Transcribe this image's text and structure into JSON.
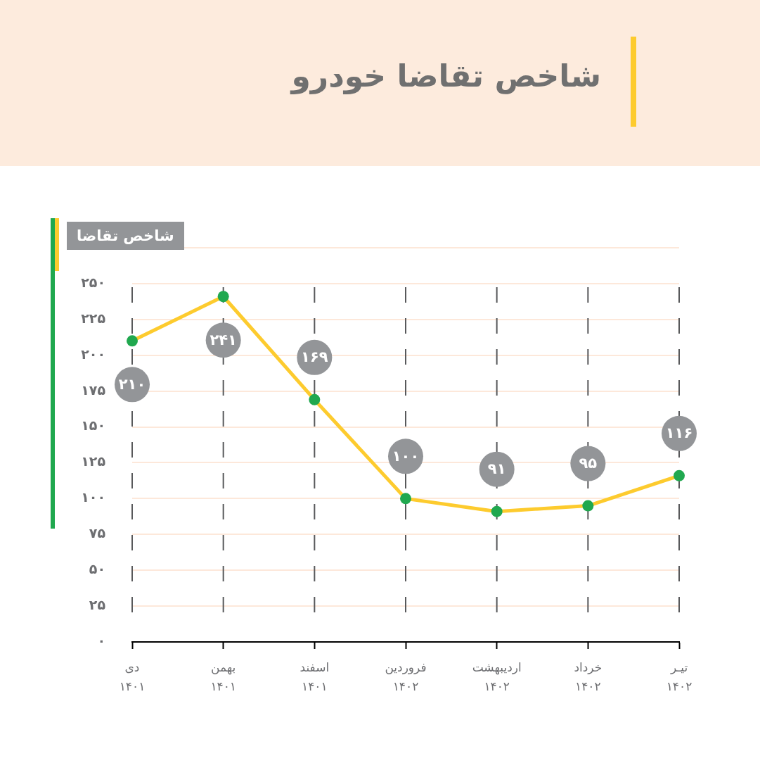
{
  "chart_data": {
    "type": "line",
    "title": "شاخص تقاضا خودرو",
    "ylabel": "شاخص تقاضا",
    "categories": [
      "دی ۱۴۰۱",
      "بهمن ۱۴۰۱",
      "اسفند ۱۴۰۱",
      "فروردین ۱۴۰۲",
      "اردیبهشت ۱۴۰۲",
      "خرداد ۱۴۰۲",
      "تیـر ۱۴۰۲"
    ],
    "series": [
      {
        "color": "#fdcb2e",
        "values": [
          210,
          241,
          169,
          100,
          91,
          95,
          116
        ],
        "value_labels": [
          "۲۱۰",
          "۲۴۱",
          "۱۶۹",
          "۱۰۰",
          "۹۱",
          "۹۵",
          "۱۱۶"
        ]
      }
    ],
    "ylim": [
      0,
      275
    ],
    "yticks": [
      {
        "value": 0,
        "label": "۰"
      },
      {
        "value": 25,
        "label": "۲۵"
      },
      {
        "value": 50,
        "label": "۵۰"
      },
      {
        "value": 75,
        "label": "۷۵"
      },
      {
        "value": 100,
        "label": "۱۰۰"
      },
      {
        "value": 125,
        "label": "۱۲۵"
      },
      {
        "value": 150,
        "label": "۱۵۰"
      },
      {
        "value": 175,
        "label": "۱۷۵"
      },
      {
        "value": 200,
        "label": "۲۰۰"
      },
      {
        "value": 225,
        "label": "۲۲۵"
      },
      {
        "value": 250,
        "label": "۲۵۰"
      },
      {
        "value": 275,
        "label": null
      }
    ],
    "grid": true,
    "legend": false,
    "marker": "circle",
    "line_style": "solid"
  }
}
